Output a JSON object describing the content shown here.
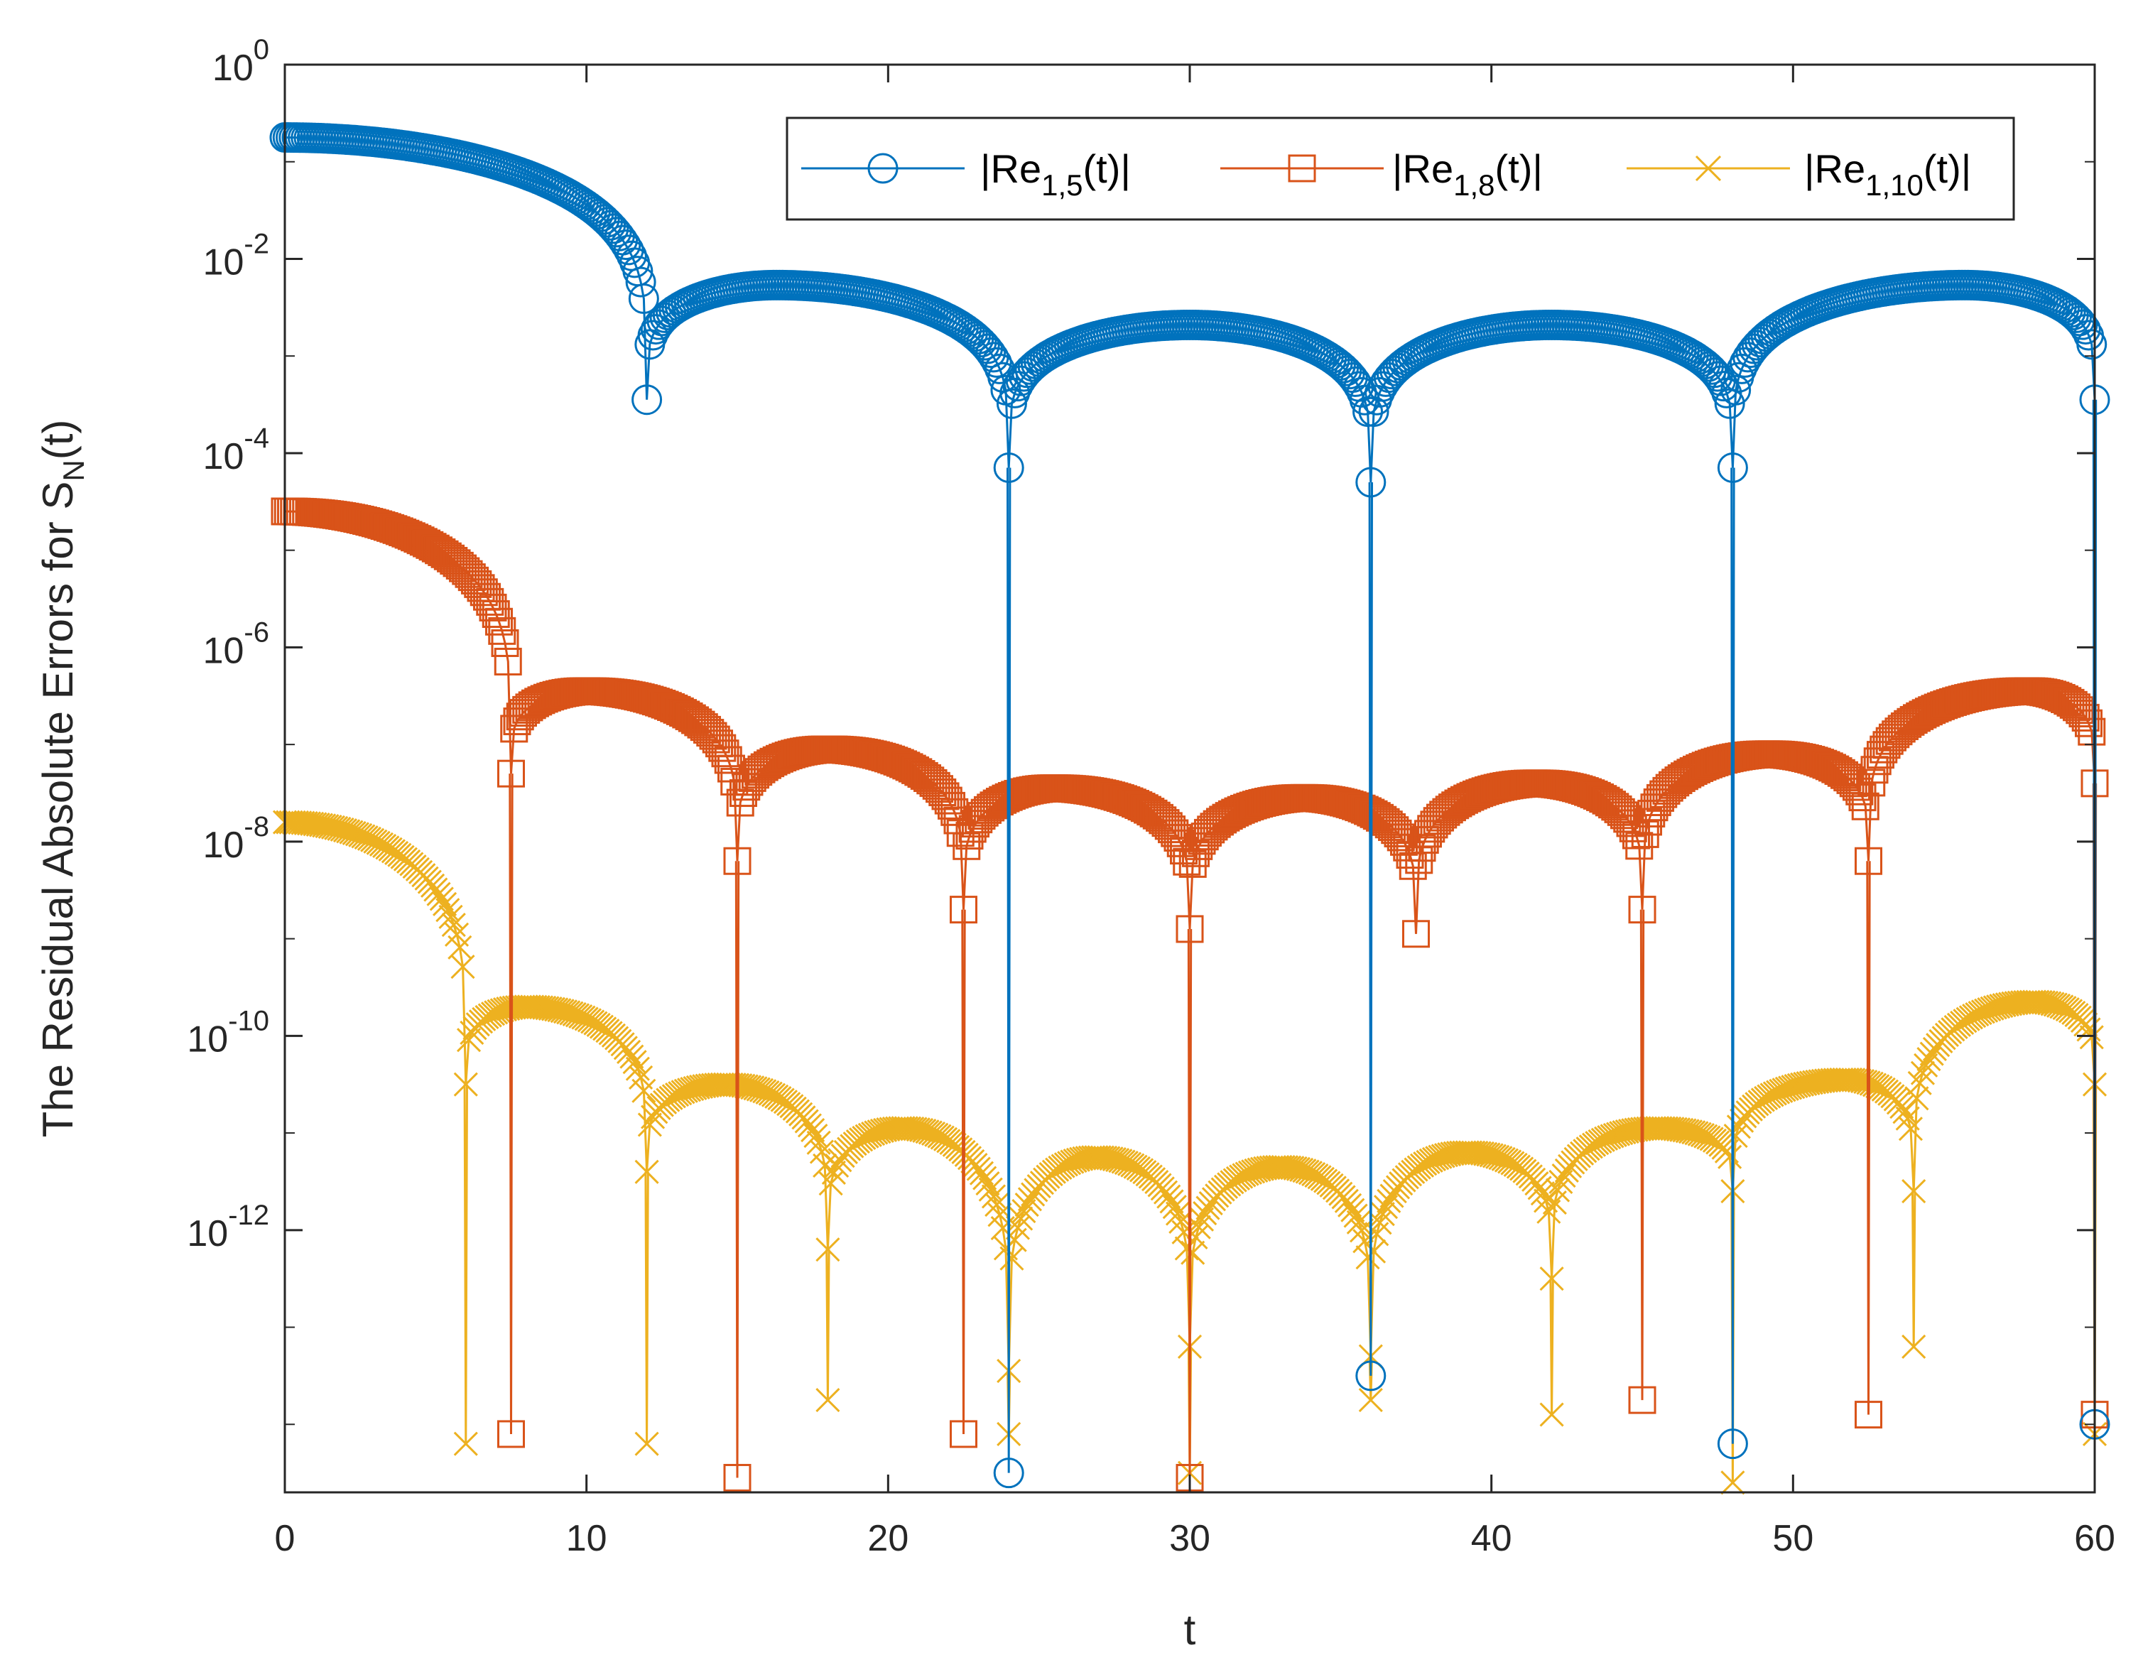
{
  "chart_data": {
    "type": "line",
    "title": "",
    "xlabel": "t",
    "ylabel": {
      "main": "The Residual Absolute Errors for S",
      "sub": "N",
      "suffix": "(t)"
    },
    "xlim": [
      0,
      60
    ],
    "ylim_log10": [
      -14.7,
      0
    ],
    "y_scale": "log",
    "x_ticks": [
      0,
      10,
      20,
      30,
      40,
      50,
      60
    ],
    "x_tick_labels": [
      "0",
      "10",
      "20",
      "30",
      "40",
      "50",
      "60"
    ],
    "y_ticks": [
      {
        "base": "10",
        "exp": "0",
        "log": 0
      },
      {
        "base": "10",
        "exp": "-2",
        "log": -2
      },
      {
        "base": "10",
        "exp": "-4",
        "log": -4
      },
      {
        "base": "10",
        "exp": "-6",
        "log": -6
      },
      {
        "base": "10",
        "exp": "-8",
        "log": -8
      },
      {
        "base": "10",
        "exp": "-10",
        "log": -10
      },
      {
        "base": "10",
        "exp": "-12",
        "log": -12
      }
    ],
    "grid": false,
    "legend_position": "top-right",
    "series": [
      {
        "name": "|Re_{1,5}(t)|",
        "label": {
          "prefix": "|Re",
          "sub": "1,5",
          "suffix": "(t)|"
        },
        "color": "#0072BD",
        "marker": "circle",
        "dips": [
          {
            "t": 12,
            "log": -3.45
          },
          {
            "t": 24,
            "log": -4.15
          },
          {
            "t": 36,
            "log": -4.3
          },
          {
            "t": 48,
            "log": -4.15
          },
          {
            "t": 60,
            "log": -3.45
          }
        ],
        "spikes": [
          {
            "t": 24,
            "log": -14.5
          },
          {
            "t": 36,
            "log": -13.5
          },
          {
            "t": 48,
            "log": -14.2
          },
          {
            "t": 60,
            "log": -14.0
          }
        ],
        "arches": [
          {
            "t0": 0,
            "t1": 12,
            "peak_t": 0,
            "peak_log": -0.75
          },
          {
            "t0": 12,
            "t1": 24,
            "peak_t": 16.3,
            "peak_log": -2.27
          },
          {
            "t0": 24,
            "t1": 36,
            "peak_t": 30,
            "peak_log": -2.68
          },
          {
            "t0": 36,
            "t1": 48,
            "peak_t": 42,
            "peak_log": -2.68
          },
          {
            "t0": 48,
            "t1": 60,
            "peak_t": 55.7,
            "peak_log": -2.27
          }
        ]
      },
      {
        "name": "|Re_{1,8}(t)|",
        "label": {
          "prefix": "|Re",
          "sub": "1,8",
          "suffix": "(t)|"
        },
        "color": "#D95319",
        "marker": "square",
        "dips": [
          {
            "t": 7.5,
            "log": -7.3
          },
          {
            "t": 15,
            "log": -8.2
          },
          {
            "t": 22.5,
            "log": -8.7
          },
          {
            "t": 30,
            "log": -8.9
          },
          {
            "t": 37.5,
            "log": -8.95
          },
          {
            "t": 45,
            "log": -8.7
          },
          {
            "t": 52.5,
            "log": -8.2
          },
          {
            "t": 60,
            "log": -7.4
          }
        ],
        "spikes": [
          {
            "t": 7.5,
            "log": -14.1
          },
          {
            "t": 15,
            "log": -14.55
          },
          {
            "t": 22.5,
            "log": -14.1
          },
          {
            "t": 30,
            "log": -14.55
          },
          {
            "t": 45,
            "log": -13.75
          },
          {
            "t": 52.5,
            "log": -13.9
          },
          {
            "t": 60,
            "log": -13.9
          }
        ],
        "arches": [
          {
            "t0": 0,
            "t1": 7.5,
            "peak_t": 0,
            "peak_log": -4.6
          },
          {
            "t0": 7.5,
            "t1": 15,
            "peak_t": 10,
            "peak_log": -6.45
          },
          {
            "t0": 15,
            "t1": 22.5,
            "peak_t": 18,
            "peak_log": -7.05
          },
          {
            "t0": 22.5,
            "t1": 30,
            "peak_t": 25.5,
            "peak_log": -7.45
          },
          {
            "t0": 30,
            "t1": 37.5,
            "peak_t": 33.8,
            "peak_log": -7.55
          },
          {
            "t0": 37.5,
            "t1": 45,
            "peak_t": 41.5,
            "peak_log": -7.4
          },
          {
            "t0": 45,
            "t1": 52.5,
            "peak_t": 49.2,
            "peak_log": -7.1
          },
          {
            "t0": 52.5,
            "t1": 60,
            "peak_t": 57.8,
            "peak_log": -6.45
          }
        ]
      },
      {
        "name": "|Re_{1,10}(t)|",
        "label": {
          "prefix": "|Re",
          "sub": "1,10",
          "suffix": "(t)|"
        },
        "color": "#EDB120",
        "marker": "x",
        "dips": [
          {
            "t": 6,
            "log": -10.5
          },
          {
            "t": 12,
            "log": -11.4
          },
          {
            "t": 18,
            "log": -12.2
          },
          {
            "t": 24,
            "log": -13.45
          },
          {
            "t": 30,
            "log": -13.2
          },
          {
            "t": 36,
            "log": -13.3
          },
          {
            "t": 42,
            "log": -12.5
          },
          {
            "t": 48,
            "log": -11.6
          },
          {
            "t": 54,
            "log": -11.6
          },
          {
            "t": 60,
            "log": -10.5
          }
        ],
        "spikes": [
          {
            "t": 6,
            "log": -14.2
          },
          {
            "t": 12,
            "log": -14.2
          },
          {
            "t": 18,
            "log": -13.75
          },
          {
            "t": 24,
            "log": -14.1
          },
          {
            "t": 30,
            "log": -14.5
          },
          {
            "t": 36,
            "log": -13.75
          },
          {
            "t": 42,
            "log": -13.9
          },
          {
            "t": 48,
            "log": -14.6
          },
          {
            "t": 54,
            "log": -13.2
          },
          {
            "t": 60,
            "log": -14.1
          }
        ],
        "arches": [
          {
            "t0": 0,
            "t1": 6,
            "peak_t": 0,
            "peak_log": -7.8
          },
          {
            "t0": 6,
            "t1": 12,
            "peak_t": 8,
            "peak_log": -9.7
          },
          {
            "t0": 12,
            "t1": 18,
            "peak_t": 14.6,
            "peak_log": -10.5
          },
          {
            "t0": 18,
            "t1": 24,
            "peak_t": 20.5,
            "peak_log": -10.95
          },
          {
            "t0": 24,
            "t1": 30,
            "peak_t": 26.9,
            "peak_log": -11.25
          },
          {
            "t0": 30,
            "t1": 36,
            "peak_t": 33,
            "peak_log": -11.35
          },
          {
            "t0": 36,
            "t1": 42,
            "peak_t": 39.2,
            "peak_log": -11.2
          },
          {
            "t0": 42,
            "t1": 48,
            "peak_t": 45.5,
            "peak_log": -10.95
          },
          {
            "t0": 48,
            "t1": 54,
            "peak_t": 51.8,
            "peak_log": -10.45
          },
          {
            "t0": 54,
            "t1": 60,
            "peak_t": 58,
            "peak_log": -9.65
          }
        ]
      }
    ]
  }
}
